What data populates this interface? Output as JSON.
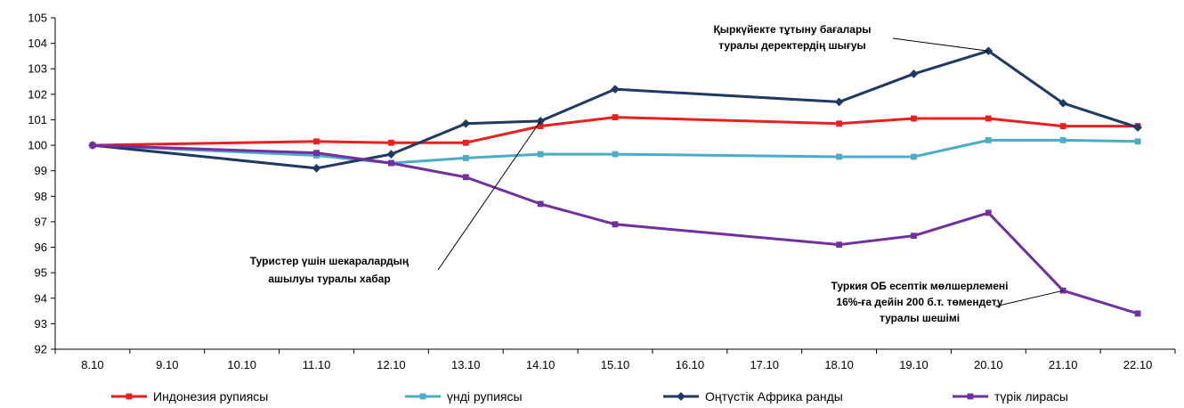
{
  "chart_data": {
    "type": "line",
    "categories": [
      "8.10",
      "9.10",
      "10.10",
      "11.10",
      "12.10",
      "13.10",
      "14.10",
      "15.10",
      "16.10",
      "17.10",
      "18.10",
      "19.10",
      "20.10",
      "21.10",
      "22.10"
    ],
    "ylim": [
      92,
      105
    ],
    "yticks": [
      92,
      93,
      94,
      95,
      96,
      97,
      98,
      99,
      100,
      101,
      102,
      103,
      104,
      105
    ],
    "grid": false,
    "legend_position": "bottom",
    "series": [
      {
        "name": "Индонезия рупиясы",
        "color": "#e8201e",
        "marker": "square",
        "points": [
          [
            0,
            100.0
          ],
          [
            3,
            100.15
          ],
          [
            4,
            100.1
          ],
          [
            5,
            100.1
          ],
          [
            6,
            100.75
          ],
          [
            7,
            101.1
          ],
          [
            10,
            100.85
          ],
          [
            11,
            101.05
          ],
          [
            12,
            101.05
          ],
          [
            13,
            100.75
          ],
          [
            14,
            100.75
          ]
        ]
      },
      {
        "name": "үнді рупиясы",
        "color": "#4bacc6",
        "marker": "square",
        "points": [
          [
            0,
            100.0
          ],
          [
            3,
            99.6
          ],
          [
            4,
            99.3
          ],
          [
            5,
            99.5
          ],
          [
            6,
            99.65
          ],
          [
            7,
            99.65
          ],
          [
            10,
            99.55
          ],
          [
            11,
            99.55
          ],
          [
            12,
            100.2
          ],
          [
            13,
            100.2
          ],
          [
            14,
            100.15
          ]
        ]
      },
      {
        "name": "Оңтүстік Африка ранды",
        "color": "#1f3864",
        "marker": "diamond",
        "points": [
          [
            0,
            100.0
          ],
          [
            3,
            99.1
          ],
          [
            4,
            99.65
          ],
          [
            5,
            100.85
          ],
          [
            6,
            100.95
          ],
          [
            7,
            102.2
          ],
          [
            10,
            101.7
          ],
          [
            11,
            102.8
          ],
          [
            12,
            103.7
          ],
          [
            13,
            101.65
          ],
          [
            14,
            100.7
          ]
        ]
      },
      {
        "name": "түрік лирасы",
        "color": "#7030a0",
        "marker": "square",
        "points": [
          [
            0,
            100.0
          ],
          [
            3,
            99.7
          ],
          [
            4,
            99.3
          ],
          [
            5,
            98.75
          ],
          [
            6,
            97.7
          ],
          [
            7,
            96.9
          ],
          [
            10,
            96.1
          ],
          [
            11,
            96.45
          ],
          [
            12,
            97.35
          ],
          [
            13,
            94.3
          ],
          [
            14,
            93.4
          ]
        ]
      }
    ],
    "annotations": [
      {
        "lines": [
          "Қыркүйекте тұтыну бағалары",
          "туралы деректердің шығуы"
        ],
        "target": [
          12,
          103.7
        ]
      },
      {
        "lines": [
          "Туристер үшін шекаралардың",
          "ашылуы туралы хабар"
        ],
        "target": [
          6,
          100.95
        ]
      },
      {
        "lines": [
          "Туркия ОБ есептік мөлшерлемені",
          "16%-ға дейін 200 б.т. төмендету",
          "туралы шешімі"
        ],
        "target": [
          13,
          94.3
        ]
      }
    ]
  }
}
